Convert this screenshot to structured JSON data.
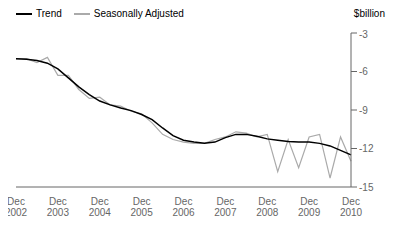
{
  "chart_data": {
    "type": "line",
    "ylabel": "$billion",
    "categories": [
      "Dec\n2002",
      null,
      null,
      null,
      "Dec\n2003",
      null,
      null,
      null,
      "Dec\n2004",
      null,
      null,
      null,
      "Dec\n2005",
      null,
      null,
      null,
      "Dec\n2006",
      null,
      null,
      null,
      "Dec\n2007",
      null,
      null,
      null,
      "Dec\n2008",
      null,
      null,
      null,
      "Dec\n2009",
      null,
      null,
      null,
      "Dec\n2010"
    ],
    "series": [
      {
        "name": "Trend",
        "color": "#000000",
        "values": [
          -5.0,
          -5.05,
          -5.15,
          -5.35,
          -5.8,
          -6.5,
          -7.2,
          -7.8,
          -8.3,
          -8.6,
          -8.85,
          -9.05,
          -9.35,
          -9.75,
          -10.4,
          -11.0,
          -11.35,
          -11.5,
          -11.6,
          -11.5,
          -11.15,
          -10.9,
          -10.9,
          -11.05,
          -11.25,
          -11.35,
          -11.45,
          -11.5,
          -11.5,
          -11.6,
          -11.8,
          -12.15,
          -12.5
        ]
      },
      {
        "name": "Seasonally Adjusted",
        "color": "#aaaaaa",
        "values": [
          -5.0,
          -5.0,
          -5.3,
          -4.9,
          -6.3,
          -6.3,
          -7.4,
          -8.1,
          -8.0,
          -8.6,
          -8.7,
          -9.1,
          -9.3,
          -10.0,
          -10.9,
          -11.3,
          -11.5,
          -11.6,
          -11.6,
          -11.3,
          -11.1,
          -10.7,
          -10.8,
          -11.1,
          -10.9,
          -13.8,
          -11.3,
          -13.5,
          -11.1,
          -10.9,
          -14.3,
          -11.1,
          -13.0
        ]
      }
    ],
    "ylim": [
      -15,
      -3
    ],
    "yticks": [
      -15,
      -12,
      -9,
      -6,
      -3
    ],
    "grid": false,
    "legend": "upper left"
  }
}
